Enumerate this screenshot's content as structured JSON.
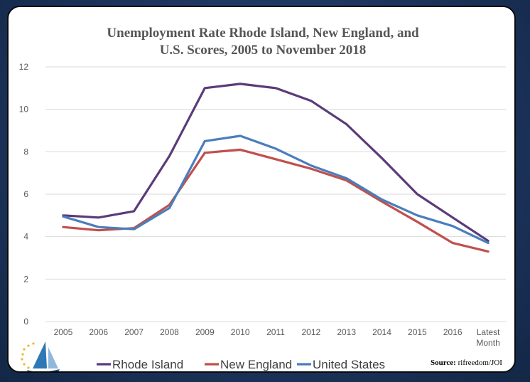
{
  "chart_data": {
    "type": "line",
    "title_line1": "Unemployment Rate Rhode Island, New England, and",
    "title_line2": "U.S. Scores, 2005 to November 2018",
    "categories": [
      "2005",
      "2006",
      "2007",
      "2008",
      "2009",
      "2010",
      "2011",
      "2012",
      "2013",
      "2014",
      "2015",
      "2016",
      "Latest Month"
    ],
    "series": [
      {
        "name": "Rhode Island",
        "color": "#5b3b79",
        "values": [
          5.0,
          4.9,
          5.2,
          7.8,
          11.0,
          11.2,
          11.0,
          10.4,
          9.3,
          7.7,
          6.0,
          4.9,
          3.8
        ]
      },
      {
        "name": "New England",
        "color": "#c0504d",
        "values": [
          4.45,
          4.3,
          4.4,
          5.5,
          7.95,
          8.1,
          7.65,
          7.2,
          6.65,
          5.65,
          4.7,
          3.7,
          3.3
        ]
      },
      {
        "name": "United States",
        "color": "#4a7ebb",
        "values": [
          4.95,
          4.45,
          4.35,
          5.35,
          8.5,
          8.75,
          8.15,
          7.35,
          6.75,
          5.75,
          5.0,
          4.5,
          3.7
        ]
      }
    ],
    "ylim": [
      0,
      12
    ],
    "yticks": [
      "0",
      "2",
      "4",
      "6",
      "8",
      "10",
      "12"
    ],
    "grid": true,
    "legend_position": "bottom"
  },
  "source": {
    "label": "Source:",
    "text": "rifreedom/JOI"
  },
  "logo": {
    "icon": "sailboat-logo-icon"
  }
}
